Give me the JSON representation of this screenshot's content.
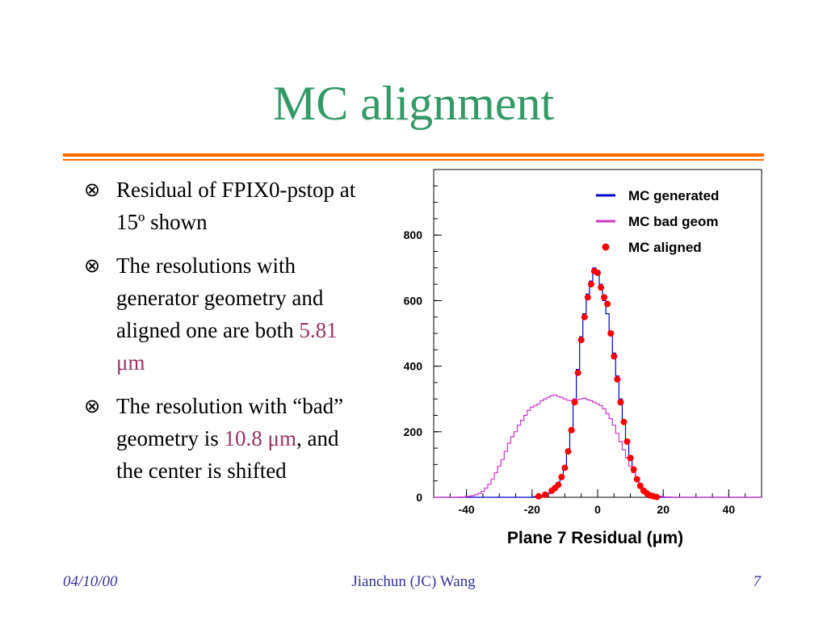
{
  "slide": {
    "title": "MC alignment",
    "bullet_marker": "⊗",
    "bullets": [
      {
        "text": "Residual of FPIX0-pstop at 15º shown"
      },
      {
        "pre": "The resolutions with generator geometry and aligned one are both ",
        "value": "5.81 μm",
        "post": ""
      },
      {
        "pre": "The resolution with “bad” geometry is ",
        "value": "10.8 μm",
        "post": ", and the center is shifted"
      }
    ],
    "footer": {
      "date": "04/10/00",
      "author": "Jianchun (JC) Wang",
      "page": "7"
    }
  },
  "chart_data": {
    "type": "line",
    "xlabel": "Plane 7 Residual (μm)",
    "ylabel": "",
    "xlim": [
      -50,
      50
    ],
    "ylim": [
      0,
      1000
    ],
    "xticks": [
      -40,
      -20,
      0,
      20,
      40
    ],
    "yticks": [
      0,
      200,
      400,
      600,
      800
    ],
    "legend_position": "top-right",
    "series": [
      {
        "name": "MC generated",
        "style": "histogram",
        "color": "#0000cc",
        "bin_width": 1,
        "x": [
          -20,
          -19,
          -18,
          -17,
          -16,
          -15,
          -14,
          -13,
          -12,
          -11,
          -10,
          -9,
          -8,
          -7,
          -6,
          -5,
          -4,
          -3,
          -2,
          -1,
          0,
          1,
          2,
          3,
          4,
          5,
          6,
          7,
          8,
          9,
          10,
          11,
          12,
          13,
          14,
          15,
          16,
          17,
          18,
          19,
          20
        ],
        "y": [
          0,
          2,
          3,
          5,
          8,
          12,
          18,
          28,
          40,
          60,
          90,
          140,
          210,
          300,
          390,
          490,
          560,
          620,
          660,
          700,
          680,
          650,
          600,
          560,
          500,
          440,
          370,
          300,
          230,
          170,
          120,
          85,
          60,
          40,
          25,
          15,
          9,
          5,
          3,
          2,
          0
        ]
      },
      {
        "name": "MC bad geom",
        "style": "histogram",
        "color": "#cc33cc",
        "bin_width": 1,
        "x": [
          -44,
          -43,
          -42,
          -41,
          -40,
          -39,
          -38,
          -37,
          -36,
          -35,
          -34,
          -33,
          -32,
          -31,
          -30,
          -29,
          -28,
          -27,
          -26,
          -25,
          -24,
          -23,
          -22,
          -21,
          -20,
          -19,
          -18,
          -17,
          -16,
          -15,
          -14,
          -13,
          -12,
          -11,
          -10,
          -9,
          -8,
          -7,
          -6,
          -5,
          -4,
          -3,
          -2,
          -1,
          0,
          1,
          2,
          3,
          4,
          5,
          6,
          7,
          8,
          9,
          10,
          11,
          12,
          13,
          14,
          15,
          16,
          17,
          18,
          19,
          20,
          21,
          22,
          23,
          24,
          25,
          26
        ],
        "y": [
          0,
          0,
          1,
          1,
          2,
          3,
          5,
          8,
          12,
          18,
          28,
          40,
          55,
          75,
          95,
          115,
          140,
          165,
          185,
          200,
          220,
          235,
          250,
          265,
          275,
          280,
          285,
          295,
          300,
          305,
          310,
          312,
          308,
          305,
          300,
          296,
          295,
          300,
          298,
          300,
          302,
          298,
          295,
          290,
          285,
          280,
          270,
          255,
          240,
          220,
          195,
          170,
          145,
          120,
          95,
          75,
          55,
          40,
          28,
          18,
          12,
          8,
          5,
          3,
          2,
          1,
          1,
          0,
          0,
          0,
          0
        ]
      },
      {
        "name": "MC aligned",
        "style": "points",
        "color": "#ff0000",
        "x": [
          -18,
          -16,
          -14,
          -13,
          -12,
          -11,
          -10,
          -9,
          -8,
          -7,
          -6,
          -5,
          -4,
          -3,
          -2,
          -1,
          0,
          1,
          2,
          3,
          4,
          5,
          6,
          7,
          8,
          9,
          10,
          11,
          12,
          13,
          14,
          15,
          16,
          17,
          18
        ],
        "y": [
          3,
          8,
          20,
          28,
          38,
          62,
          90,
          140,
          205,
          290,
          380,
          480,
          550,
          610,
          650,
          690,
          685,
          640,
          610,
          590,
          500,
          430,
          360,
          290,
          230,
          170,
          120,
          85,
          55,
          35,
          20,
          12,
          6,
          3,
          1
        ]
      }
    ]
  }
}
